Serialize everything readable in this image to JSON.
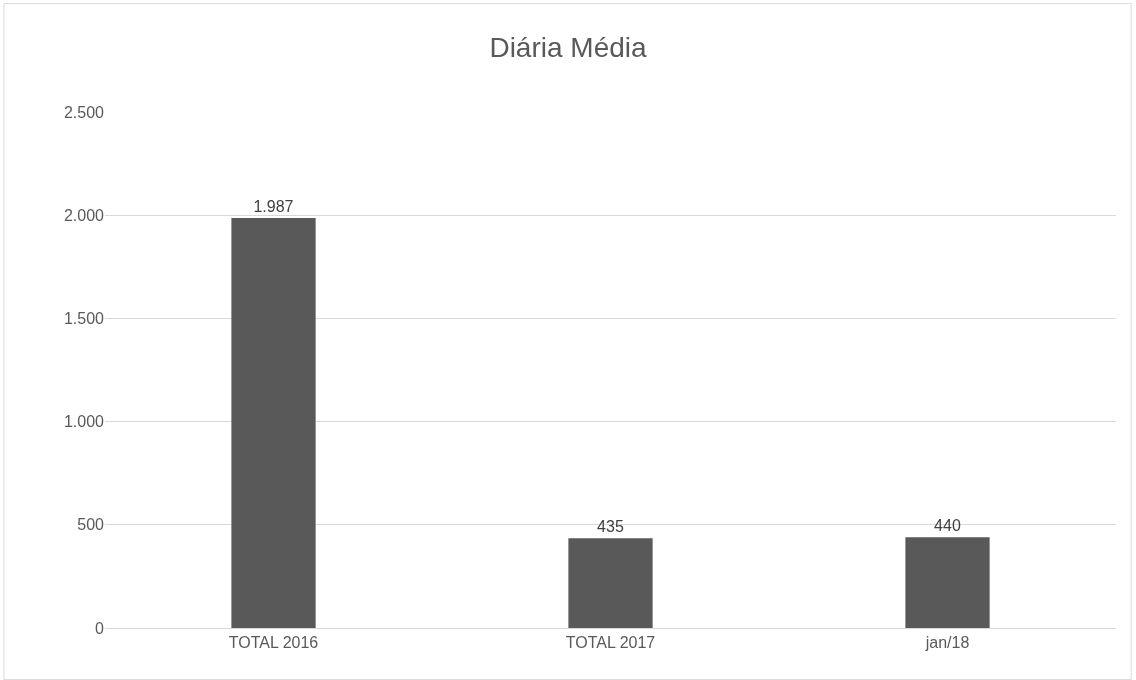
{
  "chart_data": {
    "type": "bar",
    "title": "Diária Média",
    "categories": [
      "TOTAL 2016",
      "TOTAL 2017",
      "jan/18"
    ],
    "values": [
      1987,
      435,
      440
    ],
    "value_labels": [
      "1.987",
      "435",
      "440"
    ],
    "color": "#595959",
    "ylim": [
      0,
      2500
    ],
    "yticks": [
      0,
      {
        "value": 500,
        "label": "500"
      },
      {
        "value": 1000,
        "label": "1.000"
      },
      {
        "value": 1500,
        "label": "1.500"
      },
      {
        "value": 2000,
        "label": "2.000"
      },
      {
        "value": 2500,
        "label": "2.500"
      }
    ],
    "grid": "y"
  }
}
